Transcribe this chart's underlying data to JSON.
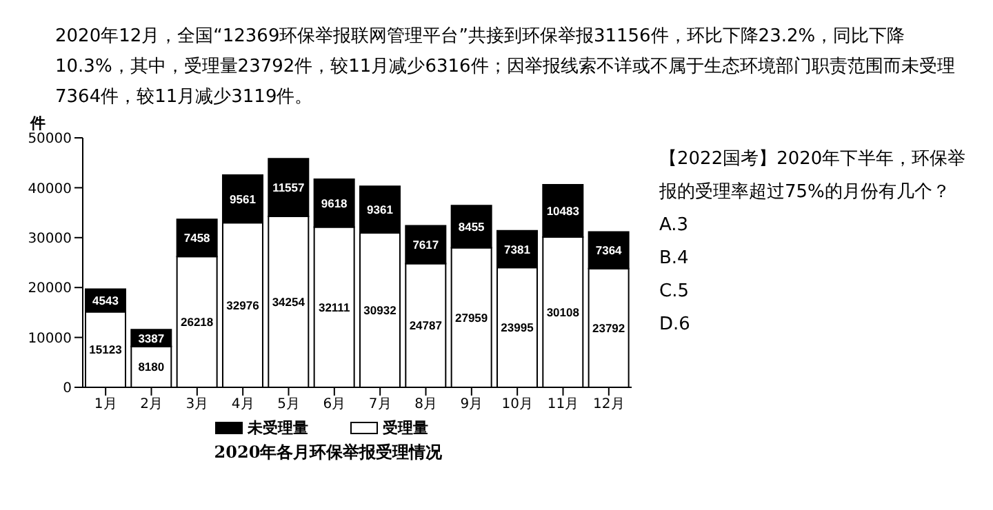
{
  "chart_data": {
    "type": "bar",
    "title": "2020年各月环保举报受理情况",
    "ylabel": "件",
    "annotations": [
      "2020年12月，全国“12369环保举报联网管理平台”共接到环保举报31156件，环比下降23.2%，同比下降10.3%，其中，受理量23792件，较11月减少6316件；因举报线索不详或不属于生态环境部门职责范围而未受理7364件，较11月减少3119件。",
      "【2022国考】2020年下半年，环保举报的受理率超过75%的月份有几个？",
      "A.3",
      "B.4",
      "C.5",
      "D.6"
    ],
    "categories": [
      "1月",
      "2月",
      "3月",
      "4月",
      "5月",
      "6月",
      "7月",
      "8月",
      "9月",
      "10月",
      "11月",
      "12月"
    ],
    "series": [
      {
        "name": "受理量",
        "color": "#ffffff",
        "values": [
          15123,
          8180,
          26218,
          32976,
          34254,
          32111,
          30932,
          24787,
          27959,
          23995,
          30108,
          23792
        ]
      },
      {
        "name": "未受理量",
        "color": "#000000",
        "values": [
          4543,
          3387,
          7458,
          9561,
          11557,
          9618,
          9361,
          7617,
          8455,
          7381,
          10483,
          7364
        ]
      }
    ],
    "stacked": true,
    "ylim": [
      0,
      50000
    ],
    "yticks": [
      0,
      10000,
      20000,
      30000,
      40000,
      50000
    ],
    "data_labels": true,
    "legend": "bottom",
    "grid": false
  }
}
